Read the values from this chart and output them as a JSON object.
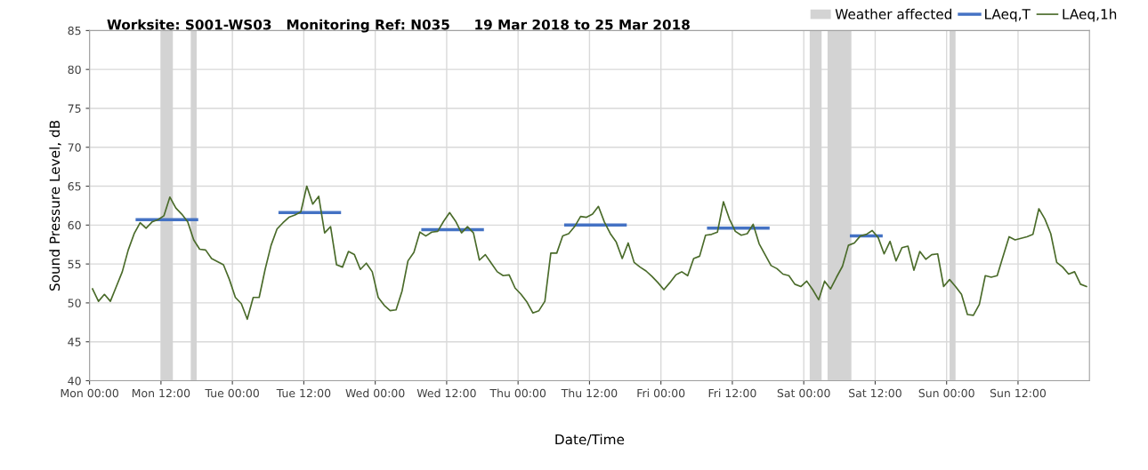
{
  "chart_data": {
    "type": "line",
    "title": "Worksite: S001-WS03   Monitoring Ref: N035     19 Mar 2018 to 25 Mar 2018",
    "xlabel": "Date/Time",
    "ylabel": "Sound Pressure Level, dB",
    "xlim": [
      "2018-03-19T00:00",
      "2018-03-26T00:00"
    ],
    "ylim": [
      40,
      85
    ],
    "xticks": [
      {
        "value": "2018-03-19T00:00",
        "label": "Mon 00:00"
      },
      {
        "value": "2018-03-19T12:00",
        "label": "Mon 12:00"
      },
      {
        "value": "2018-03-20T00:00",
        "label": "Tue 00:00"
      },
      {
        "value": "2018-03-20T12:00",
        "label": "Tue 12:00"
      },
      {
        "value": "2018-03-21T00:00",
        "label": "Wed 00:00"
      },
      {
        "value": "2018-03-21T12:00",
        "label": "Wed 12:00"
      },
      {
        "value": "2018-03-22T00:00",
        "label": "Thu 00:00"
      },
      {
        "value": "2018-03-22T12:00",
        "label": "Thu 12:00"
      },
      {
        "value": "2018-03-23T00:00",
        "label": "Fri 00:00"
      },
      {
        "value": "2018-03-23T12:00",
        "label": "Fri 12:00"
      },
      {
        "value": "2018-03-24T00:00",
        "label": "Sat 00:00"
      },
      {
        "value": "2018-03-24T12:00",
        "label": "Sat 12:00"
      },
      {
        "value": "2018-03-25T00:00",
        "label": "Sun 00:00"
      },
      {
        "value": "2018-03-25T12:00",
        "label": "Sun 12:00"
      }
    ],
    "yticks": [
      40,
      45,
      50,
      55,
      60,
      65,
      70,
      75,
      80,
      85
    ],
    "grid": true,
    "legend": "top right",
    "marker": "none",
    "line_style": "solid",
    "bands": [
      {
        "axis": "x",
        "from": "2018-03-19T12:00",
        "to": "2018-03-19T14:00",
        "label": "Weather affected",
        "color": "#d3d3d3"
      },
      {
        "axis": "x",
        "from": "2018-03-19T17:00",
        "to": "2018-03-19T18:00",
        "color": "#d3d3d3"
      },
      {
        "axis": "x",
        "from": "2018-03-24T01:00",
        "to": "2018-03-24T03:00",
        "color": "#d3d3d3"
      },
      {
        "axis": "x",
        "from": "2018-03-24T04:00",
        "to": "2018-03-24T08:00",
        "color": "#d3d3d3"
      },
      {
        "axis": "x",
        "from": "2018-03-25T00:30",
        "to": "2018-03-25T01:30",
        "color": "#d3d3d3"
      }
    ],
    "series": [
      {
        "name": "LAeq,T",
        "color": "#4472c4",
        "x": [
          "2018-03-19T08:00",
          "2018-03-19T18:00",
          "2018-03-20T01:00",
          "2018-03-20T08:00",
          "2018-03-20T18:00",
          "2018-03-21T01:00",
          "2018-03-21T08:00",
          "2018-03-21T18:00",
          "2018-03-22T01:00",
          "2018-03-22T08:00",
          "2018-03-22T18:00",
          "2018-03-23T01:00",
          "2018-03-23T08:00",
          "2018-03-23T18:00",
          "2018-03-24T01:00",
          "2018-03-24T08:00",
          "2018-03-24T13:00"
        ],
        "values": [
          60.7,
          60.7,
          null,
          61.6,
          61.6,
          null,
          59.4,
          59.4,
          null,
          60.0,
          60.0,
          null,
          59.6,
          59.6,
          null,
          58.6,
          58.6
        ]
      },
      {
        "name": "LAeq,1h",
        "color": "#4a6b2a",
        "x": [
          "2018-03-19T00:30",
          "2018-03-19T01:30",
          "2018-03-19T02:30",
          "2018-03-19T03:30",
          "2018-03-19T04:30",
          "2018-03-19T05:30",
          "2018-03-19T06:30",
          "2018-03-19T07:30",
          "2018-03-19T08:30",
          "2018-03-19T09:30",
          "2018-03-19T10:30",
          "2018-03-19T11:30",
          "2018-03-19T12:30",
          "2018-03-19T13:30",
          "2018-03-19T14:30",
          "2018-03-19T15:30",
          "2018-03-19T16:30",
          "2018-03-19T17:30",
          "2018-03-19T18:30",
          "2018-03-19T19:30",
          "2018-03-19T20:30",
          "2018-03-19T21:30",
          "2018-03-19T22:30",
          "2018-03-19T23:30",
          "2018-03-20T00:30",
          "2018-03-20T01:30",
          "2018-03-20T02:30",
          "2018-03-20T03:30",
          "2018-03-20T04:30",
          "2018-03-20T05:30",
          "2018-03-20T06:30",
          "2018-03-20T07:30",
          "2018-03-20T08:30",
          "2018-03-20T09:30",
          "2018-03-20T10:30",
          "2018-03-20T11:30",
          "2018-03-20T12:30",
          "2018-03-20T13:30",
          "2018-03-20T14:30",
          "2018-03-20T15:30",
          "2018-03-20T16:30",
          "2018-03-20T17:30",
          "2018-03-20T18:30",
          "2018-03-20T19:30",
          "2018-03-20T20:30",
          "2018-03-20T21:30",
          "2018-03-20T22:30",
          "2018-03-20T23:30",
          "2018-03-21T00:30",
          "2018-03-21T01:30",
          "2018-03-21T02:30",
          "2018-03-21T03:30",
          "2018-03-21T04:30",
          "2018-03-21T05:30",
          "2018-03-21T06:30",
          "2018-03-21T07:30",
          "2018-03-21T08:30",
          "2018-03-21T09:30",
          "2018-03-21T10:30",
          "2018-03-21T11:30",
          "2018-03-21T12:30",
          "2018-03-21T13:30",
          "2018-03-21T14:30",
          "2018-03-21T15:30",
          "2018-03-21T16:30",
          "2018-03-21T17:30",
          "2018-03-21T18:30",
          "2018-03-21T19:30",
          "2018-03-21T20:30",
          "2018-03-21T21:30",
          "2018-03-21T22:30",
          "2018-03-21T23:30",
          "2018-03-22T00:30",
          "2018-03-22T01:30",
          "2018-03-22T02:30",
          "2018-03-22T03:30",
          "2018-03-22T04:30",
          "2018-03-22T05:30",
          "2018-03-22T06:30",
          "2018-03-22T07:30",
          "2018-03-22T08:30",
          "2018-03-22T09:30",
          "2018-03-22T10:30",
          "2018-03-22T11:30",
          "2018-03-22T12:30",
          "2018-03-22T13:30",
          "2018-03-22T14:30",
          "2018-03-22T15:30",
          "2018-03-22T16:30",
          "2018-03-22T17:30",
          "2018-03-22T18:30",
          "2018-03-22T19:30",
          "2018-03-22T20:30",
          "2018-03-22T21:30",
          "2018-03-22T22:30",
          "2018-03-22T23:30",
          "2018-03-23T00:30",
          "2018-03-23T01:30",
          "2018-03-23T02:30",
          "2018-03-23T03:30",
          "2018-03-23T04:30",
          "2018-03-23T05:30",
          "2018-03-23T06:30",
          "2018-03-23T07:30",
          "2018-03-23T08:30",
          "2018-03-23T09:30",
          "2018-03-23T10:30",
          "2018-03-23T11:30",
          "2018-03-23T12:30",
          "2018-03-23T13:30",
          "2018-03-23T14:30",
          "2018-03-23T15:30",
          "2018-03-23T16:30",
          "2018-03-23T17:30",
          "2018-03-23T18:30",
          "2018-03-23T19:30",
          "2018-03-23T20:30",
          "2018-03-23T21:30",
          "2018-03-23T22:30",
          "2018-03-23T23:30",
          "2018-03-24T00:30",
          "2018-03-24T01:30",
          "2018-03-24T02:30",
          "2018-03-24T03:30",
          "2018-03-24T04:30",
          "2018-03-24T05:30",
          "2018-03-24T06:30",
          "2018-03-24T07:30",
          "2018-03-24T08:30",
          "2018-03-24T09:30",
          "2018-03-24T10:30",
          "2018-03-24T11:30",
          "2018-03-24T12:30",
          "2018-03-24T13:30",
          "2018-03-24T14:30",
          "2018-03-24T15:30",
          "2018-03-24T16:30",
          "2018-03-24T17:30",
          "2018-03-24T18:30",
          "2018-03-24T19:30",
          "2018-03-24T20:30",
          "2018-03-24T21:30",
          "2018-03-24T22:30",
          "2018-03-24T23:30",
          "2018-03-25T00:30",
          "2018-03-25T01:30",
          "2018-03-25T02:30",
          "2018-03-25T03:30",
          "2018-03-25T04:30",
          "2018-03-25T05:30",
          "2018-03-25T06:30",
          "2018-03-25T07:30",
          "2018-03-25T08:30",
          "2018-03-25T09:30",
          "2018-03-25T10:30",
          "2018-03-25T11:30",
          "2018-03-25T12:30",
          "2018-03-25T13:30",
          "2018-03-25T14:30",
          "2018-03-25T15:30",
          "2018-03-25T16:30",
          "2018-03-25T17:30",
          "2018-03-25T18:30",
          "2018-03-25T19:30",
          "2018-03-25T20:30",
          "2018-03-25T21:30",
          "2018-03-25T22:30",
          "2018-03-25T23:30"
        ],
        "values": [
          51.8,
          50.2,
          51.1,
          50.2,
          52.1,
          54.0,
          56.8,
          58.9,
          60.3,
          59.6,
          60.4,
          60.7,
          61.2,
          63.6,
          62.2,
          61.4,
          60.4,
          58.1,
          56.9,
          56.8,
          55.7,
          55.3,
          54.9,
          53.0,
          50.7,
          49.9,
          47.9,
          50.7,
          50.7,
          54.3,
          57.4,
          59.5,
          60.3,
          61.0,
          61.3,
          61.7,
          65.0,
          62.7,
          63.7,
          59.0,
          59.8,
          54.9,
          54.6,
          56.6,
          56.2,
          54.3,
          55.1,
          54.0,
          50.7,
          49.7,
          49.0,
          49.1,
          51.5,
          55.4,
          56.5,
          59.1,
          58.6,
          59.1,
          59.2,
          60.5,
          61.6,
          60.5,
          59.0,
          59.8,
          59.0,
          55.5,
          56.2,
          55.1,
          54.0,
          53.5,
          53.6,
          51.9,
          51.1,
          50.1,
          48.7,
          49.0,
          50.2,
          56.4,
          56.4,
          58.6,
          58.9,
          59.8,
          61.1,
          61.0,
          61.4,
          62.4,
          60.4,
          58.9,
          57.8,
          55.7,
          57.7,
          55.2,
          54.6,
          54.1,
          53.4,
          52.6,
          51.7,
          52.6,
          53.6,
          54.0,
          53.5,
          55.7,
          56.0,
          58.7,
          58.8,
          59.1,
          63.0,
          60.8,
          59.2,
          58.7,
          58.9,
          60.1,
          57.6,
          56.2,
          54.8,
          54.4,
          53.7,
          53.5,
          52.4,
          52.1,
          52.8,
          51.7,
          50.4,
          52.8,
          51.8,
          53.3,
          54.7,
          57.4,
          57.7,
          58.6,
          58.8,
          59.3,
          58.4,
          56.3,
          57.9,
          55.4,
          57.1,
          57.3,
          54.2,
          56.6,
          55.6,
          56.2,
          56.3,
          52.1,
          53.0,
          52.1,
          51.1,
          48.5,
          48.4,
          49.8,
          53.5,
          53.3,
          53.5,
          56.0,
          58.5,
          58.1,
          58.3,
          58.5,
          58.8,
          62.1,
          60.8,
          58.9,
          55.2,
          54.6,
          53.7,
          54.0,
          52.4,
          52.1
        ]
      }
    ]
  }
}
